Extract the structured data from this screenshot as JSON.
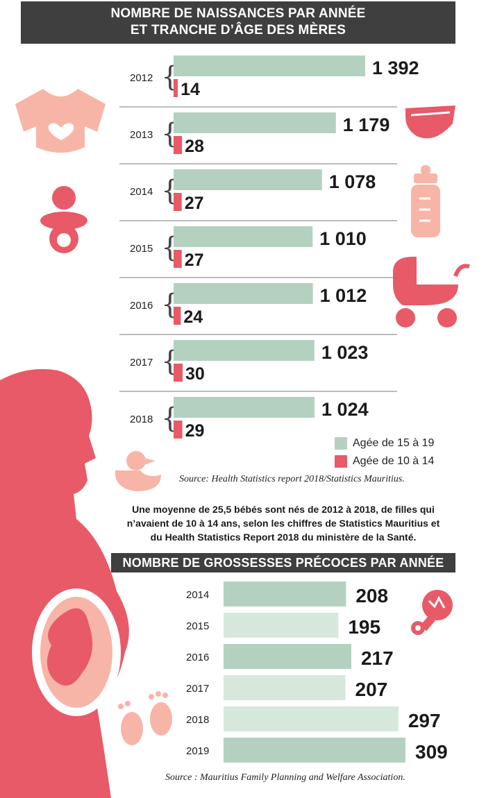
{
  "titles": {
    "main_line1": "NOMBRE DE NAISSANCES PAR ANNÉE",
    "main_line2": "ET TRANCHE D’ÂGE DES MÈRES",
    "second": "NOMBRE DE GROSSESSES PRÉCOCES PAR ANNÉE"
  },
  "note": {
    "line1": "Une moyenne de 25,5 bébés sont nés de 2012 à 2018, de filles qui",
    "line2": "n’avaient de 10 à 14 ans, selon les chiffres de Statistics Mauritius et",
    "line3": "du Health Statistics Report 2018 du ministère de la Santé."
  },
  "sources": {
    "first": "Source: Health Statistics report 2018/Statistics Mauritius.",
    "second": "Source : Mauritius Family Planning and Welfare Association."
  },
  "colors": {
    "green": "#b4d1bf",
    "light_green": "#d6e8dc",
    "pink": "#e85a67",
    "pink_light": "#f7b5a8",
    "header_bg": "#3f3f3f"
  },
  "chart_data": [
    {
      "type": "bar",
      "title": "NOMBRE DE NAISSANCES PAR ANNÉE ET TRANCHE D’ÂGE DES MÈRES",
      "categories": [
        "2012",
        "2013",
        "2014",
        "2015",
        "2016",
        "2017",
        "2018"
      ],
      "series": [
        {
          "name": "Agée de 15 à 19",
          "values": [
            1392,
            1179,
            1078,
            1010,
            1012,
            1023,
            1024
          ],
          "labels": [
            "1 392",
            "1 179",
            "1 078",
            "1 010",
            "1 012",
            "1 023",
            "1 024"
          ]
        },
        {
          "name": "Agée de 10 à 14",
          "values": [
            14,
            28,
            27,
            27,
            24,
            30,
            29
          ],
          "labels": [
            "14",
            "28",
            "27",
            "27",
            "24",
            "30",
            "29"
          ]
        }
      ],
      "orientation": "horizontal",
      "xlim": [
        0,
        1430
      ],
      "legend": "bottom-right"
    },
    {
      "type": "bar",
      "title": "NOMBRE DE GROSSESSES PRÉCOCES PAR ANNÉE",
      "categories": [
        "2014",
        "2015",
        "2016",
        "2017",
        "2018",
        "2019"
      ],
      "values": [
        208,
        195,
        217,
        207,
        297,
        309
      ],
      "labels": [
        "208",
        "195",
        "217",
        "207",
        "297",
        "309"
      ],
      "orientation": "horizontal",
      "xlim": [
        0,
        335
      ]
    }
  ]
}
